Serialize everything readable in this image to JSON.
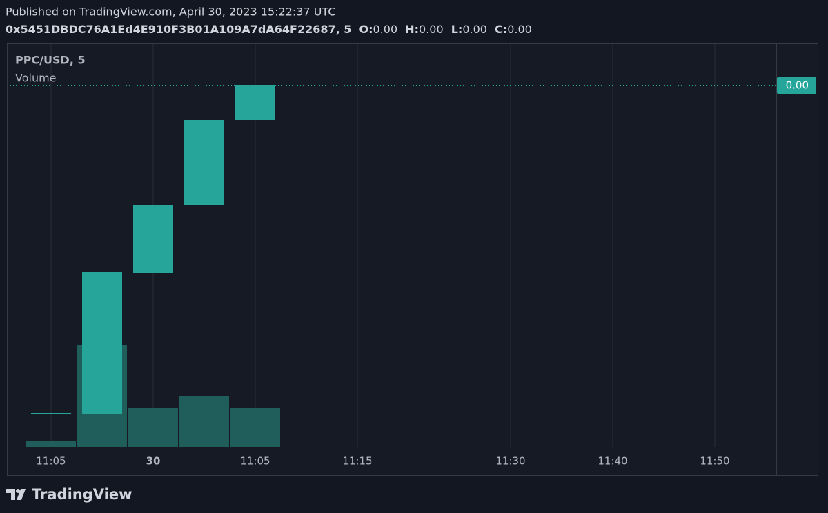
{
  "header": {
    "published": "Published on TradingView.com, April 30, 2023 15:22:37 UTC",
    "symbol": "0x5451DBDC76A1Ed4E910F3B01A109A7dA64F22687, 5",
    "ohlc": [
      {
        "label": "O:",
        "value": "0.00"
      },
      {
        "label": "H:",
        "value": "0.00"
      },
      {
        "label": "L:",
        "value": "0.00"
      },
      {
        "label": "C:",
        "value": "0.00"
      }
    ]
  },
  "legend": {
    "title": "PPC/USD, 5",
    "volume": "Volume"
  },
  "price_label": "0.00",
  "time_axis": [
    "11:05",
    "30",
    "11:05",
    "11:15",
    "11:30",
    "11:40",
    "11:50"
  ],
  "footer": "TradingView"
}
